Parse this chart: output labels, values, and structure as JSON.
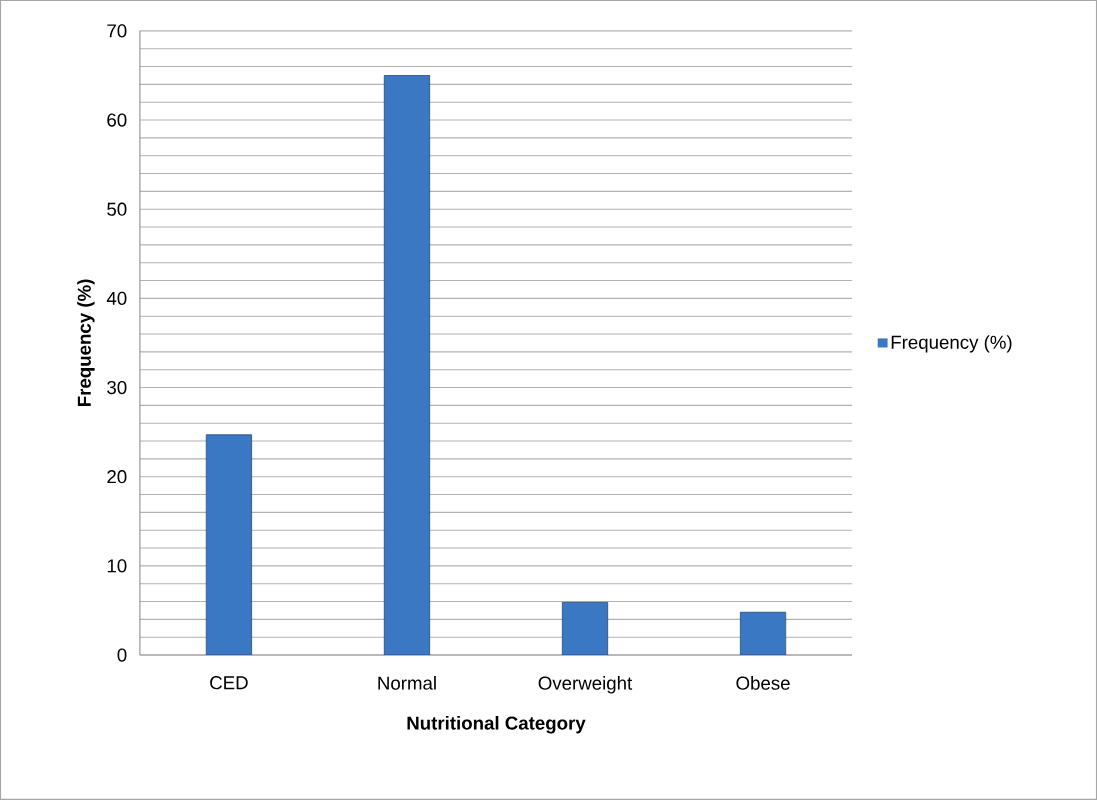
{
  "chart_data": {
    "type": "bar",
    "xlabel": "Nutritional Category",
    "ylabel": "Frequency (%)",
    "categories": [
      "CED",
      "Normal",
      "Overweight",
      "Obese"
    ],
    "series": [
      {
        "name": "Frequency (%)",
        "color": "#3b78c4",
        "values": [
          24.7,
          65,
          5.9,
          4.8
        ]
      }
    ],
    "ylim": [
      0,
      70
    ],
    "yticks": [
      0,
      {
        "value": 2,
        "label": null
      },
      {
        "value": 4,
        "label": null
      },
      {
        "value": 6,
        "label": null
      },
      {
        "value": 8,
        "label": null
      },
      10,
      {
        "value": 12,
        "label": null
      },
      {
        "value": 14,
        "label": null
      },
      {
        "value": 16,
        "label": null
      },
      {
        "value": 18,
        "label": null
      },
      20,
      {
        "value": 22,
        "label": null
      },
      {
        "value": 24,
        "label": null
      },
      {
        "value": 26,
        "label": null
      },
      {
        "value": 28,
        "label": null
      },
      30,
      {
        "value": 32,
        "label": null
      },
      {
        "value": 34,
        "label": null
      },
      {
        "value": 36,
        "label": null
      },
      {
        "value": 38,
        "label": null
      },
      40,
      {
        "value": 42,
        "label": null
      },
      {
        "value": 44,
        "label": null
      },
      {
        "value": 46,
        "label": null
      },
      {
        "value": 48,
        "label": null
      },
      50,
      {
        "value": 52,
        "label": null
      },
      {
        "value": 54,
        "label": null
      },
      {
        "value": 56,
        "label": null
      },
      {
        "value": 58,
        "label": null
      },
      60,
      {
        "value": 62,
        "label": null
      },
      {
        "value": 64,
        "label": null
      },
      {
        "value": 66,
        "label": null
      },
      {
        "value": 68,
        "label": null
      },
      70
    ],
    "grid": "y",
    "legend": "right"
  }
}
